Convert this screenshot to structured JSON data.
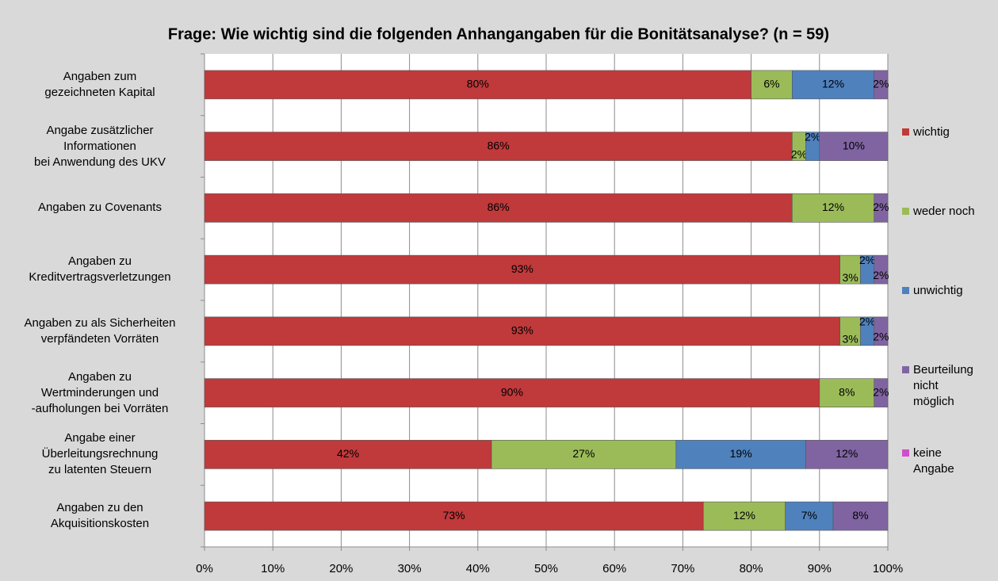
{
  "chart_data": {
    "type": "stacked-bar-horizontal",
    "title": "Frage: Wie wichtig sind die folgenden Anhangangaben für die Bonitätsanalyse? (n = 59)",
    "categories": [
      "Angaben zum\ngezeichneten Kapital",
      "Angabe zusätzlicher\nInformationen\nbei Anwendung des UKV",
      "Angaben zu Covenants",
      "Angaben zu\nKreditvertragsverletzungen",
      "Angaben zu als Sicherheiten\nverpfändeten Vorräten",
      "Angaben zu\nWertminderungen und\n-aufholungen bei Vorräten",
      "Angabe einer\nÜberleitungsrechnung\nzu latenten Steuern",
      "Angaben zu den\nAkquisitionskosten"
    ],
    "series": [
      {
        "name": "wichtig",
        "color": "#c0393b",
        "values": [
          80,
          86,
          86,
          93,
          93,
          90,
          42,
          73
        ],
        "value_labels": [
          "80%",
          "86%",
          "86%",
          "93%",
          "93%",
          "90%",
          "42%",
          "73%"
        ]
      },
      {
        "name": "weder noch",
        "color": "#9bbb59",
        "values": [
          6,
          2,
          12,
          3,
          3,
          8,
          27,
          12
        ],
        "value_labels": [
          "6%",
          "2%",
          "12%",
          "3%",
          "3%",
          "8%",
          "27%",
          "12%"
        ]
      },
      {
        "name": "unwichtig",
        "color": "#4f81bd",
        "values": [
          12,
          2,
          0,
          2,
          2,
          0,
          19,
          7
        ],
        "value_labels": [
          "12%",
          "2%",
          null,
          "2%",
          "2%",
          null,
          "19%",
          "7%"
        ]
      },
      {
        "name": "Beurteilung\nnicht\nmöglich",
        "color": "#8064a2",
        "values": [
          2,
          10,
          2,
          2,
          2,
          2,
          12,
          8
        ],
        "value_labels": [
          "2%",
          "10%",
          "2%",
          "2%",
          "2%",
          "2%",
          "12%",
          "8%"
        ]
      },
      {
        "name": "keine\nAngabe",
        "color": "#d04fc8",
        "values": [
          0,
          0,
          0,
          0,
          0,
          0,
          0,
          0
        ]
      }
    ],
    "xlim": [
      0,
      100
    ],
    "xticks": [
      {
        "value": 0,
        "label": "0%"
      },
      {
        "value": 10,
        "label": "10%"
      },
      {
        "value": 20,
        "label": "20%"
      },
      {
        "value": 30,
        "label": "30%"
      },
      {
        "value": 40,
        "label": "40%"
      },
      {
        "value": 50,
        "label": "50%"
      },
      {
        "value": 60,
        "label": "60%"
      },
      {
        "value": 70,
        "label": "70%"
      },
      {
        "value": 80,
        "label": "80%"
      },
      {
        "value": 90,
        "label": "90%"
      },
      {
        "value": 100,
        "label": "100%"
      }
    ],
    "grid": true,
    "legend": "right"
  }
}
